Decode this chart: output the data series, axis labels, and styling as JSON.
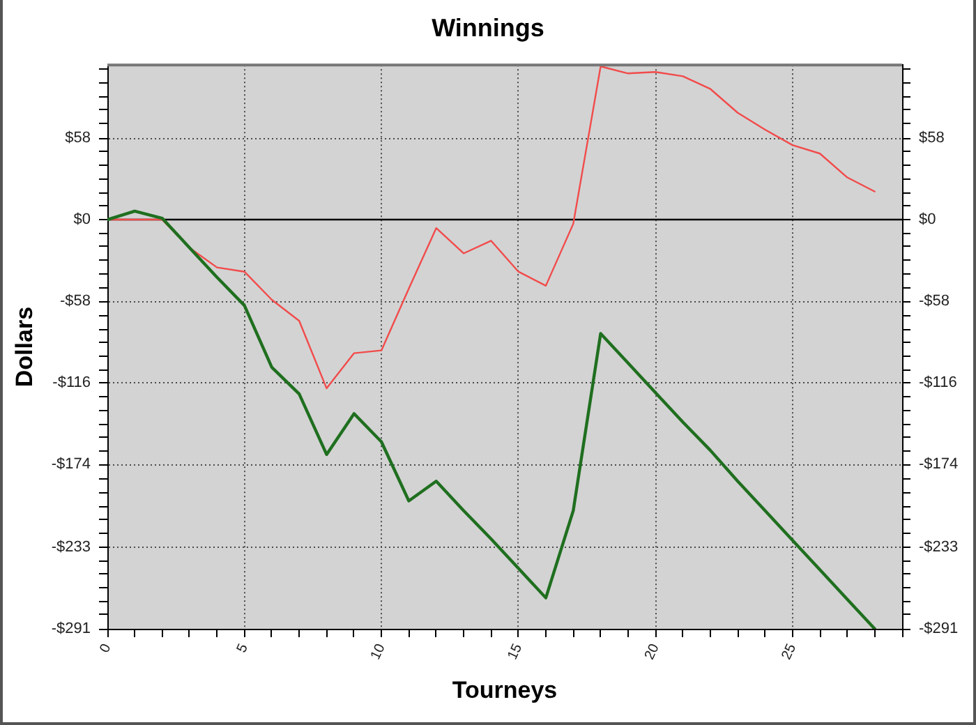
{
  "chart_data": {
    "type": "line",
    "title": "Winnings",
    "xlabel": "Tourneys",
    "ylabel": "Dollars",
    "x": [
      0,
      1,
      2,
      3,
      4,
      5,
      6,
      7,
      8,
      9,
      10,
      11,
      12,
      13,
      14,
      15,
      16,
      17,
      18,
      19,
      20,
      21,
      22,
      23,
      24,
      25,
      26,
      27,
      28
    ],
    "series": [
      {
        "color": "#1f6f1f",
        "values": [
          0,
          6,
          1,
          -20,
          -41,
          -61,
          -105,
          -124,
          -167,
          -138,
          -158,
          -200,
          -186,
          -207,
          -227,
          -248,
          -269,
          -207,
          -81,
          -102,
          -123,
          -144,
          -164,
          -186,
          -207,
          -228,
          -249,
          -270,
          -291
        ]
      },
      {
        "color": "#f24b4b",
        "values": [
          0,
          0,
          0,
          -20,
          -34,
          -37,
          -57,
          -72,
          -120,
          -95,
          -93,
          -49,
          -6,
          -24,
          -15,
          -37,
          -47,
          -3,
          109,
          104,
          105,
          102,
          93,
          76,
          64,
          53,
          47,
          30,
          20
        ]
      }
    ],
    "xlim": [
      0,
      29
    ],
    "xticks": [
      0,
      {
        "value": 1,
        "label": null
      },
      {
        "value": 2,
        "label": null
      },
      {
        "value": 3,
        "label": null
      },
      {
        "value": 4,
        "label": null
      },
      5,
      {
        "value": 6,
        "label": null
      },
      {
        "value": 7,
        "label": null
      },
      {
        "value": 8,
        "label": null
      },
      {
        "value": 9,
        "label": null
      },
      10,
      {
        "value": 11,
        "label": null
      },
      {
        "value": 12,
        "label": null
      },
      {
        "value": 13,
        "label": null
      },
      {
        "value": 14,
        "label": null
      },
      15,
      {
        "value": 16,
        "label": null
      },
      {
        "value": 17,
        "label": null
      },
      {
        "value": 18,
        "label": null
      },
      {
        "value": 19,
        "label": null
      },
      20,
      {
        "value": 21,
        "label": null
      },
      {
        "value": 22,
        "label": null
      },
      {
        "value": 23,
        "label": null
      },
      {
        "value": 24,
        "label": null
      },
      25,
      {
        "value": 26,
        "label": null
      },
      {
        "value": 27,
        "label": null
      },
      {
        "value": 28,
        "label": null
      },
      {
        "value": 29,
        "label": null
      }
    ],
    "ylim": [
      -291,
      110
    ],
    "yticks": [
      {
        "value": 107,
        "label": null
      },
      {
        "value": 97,
        "label": null
      },
      {
        "value": 87,
        "label": null
      },
      {
        "value": 78,
        "label": null
      },
      {
        "value": 68,
        "label": null
      },
      {
        "value": 58,
        "label": "$58"
      },
      {
        "value": 49,
        "label": null
      },
      {
        "value": 39,
        "label": null
      },
      {
        "value": 29,
        "label": null
      },
      {
        "value": 19,
        "label": null
      },
      {
        "value": 10,
        "label": null
      },
      {
        "value": 0,
        "label": "$0"
      },
      {
        "value": -10,
        "label": null
      },
      {
        "value": -19,
        "label": null
      },
      {
        "value": -29,
        "label": null
      },
      {
        "value": -39,
        "label": null
      },
      {
        "value": -49,
        "label": null
      },
      {
        "value": -58,
        "label": "-$58"
      },
      {
        "value": -68,
        "label": null
      },
      {
        "value": -78,
        "label": null
      },
      {
        "value": -87,
        "label": null
      },
      {
        "value": -97,
        "label": null
      },
      {
        "value": -107,
        "label": null
      },
      {
        "value": -116,
        "label": "-$116"
      },
      {
        "value": -126,
        "label": null
      },
      {
        "value": -136,
        "label": null
      },
      {
        "value": -146,
        "label": null
      },
      {
        "value": -155,
        "label": null
      },
      {
        "value": -165,
        "label": null
      },
      {
        "value": -174,
        "label": "-$174"
      },
      {
        "value": -184,
        "label": null
      },
      {
        "value": -194,
        "label": null
      },
      {
        "value": -204,
        "label": null
      },
      {
        "value": -213,
        "label": null
      },
      {
        "value": -223,
        "label": null
      },
      {
        "value": -233,
        "label": "-$233"
      },
      {
        "value": -243,
        "label": null
      },
      {
        "value": -252,
        "label": null
      },
      {
        "value": -262,
        "label": null
      },
      {
        "value": -272,
        "label": null
      },
      {
        "value": -281,
        "label": null
      },
      {
        "value": -291,
        "label": "-$291"
      }
    ],
    "y2lim": [
      -291,
      110
    ],
    "y2ticks": [
      {
        "value": 107,
        "label": null
      },
      {
        "value": 97,
        "label": null
      },
      {
        "value": 87,
        "label": null
      },
      {
        "value": 78,
        "label": null
      },
      {
        "value": 68,
        "label": null
      },
      {
        "value": 58,
        "label": "$58"
      },
      {
        "value": 49,
        "label": null
      },
      {
        "value": 39,
        "label": null
      },
      {
        "value": 29,
        "label": null
      },
      {
        "value": 19,
        "label": null
      },
      {
        "value": 10,
        "label": null
      },
      {
        "value": 0,
        "label": "$0"
      },
      {
        "value": -10,
        "label": null
      },
      {
        "value": -19,
        "label": null
      },
      {
        "value": -29,
        "label": null
      },
      {
        "value": -39,
        "label": null
      },
      {
        "value": -49,
        "label": null
      },
      {
        "value": -58,
        "label": "-$58"
      },
      {
        "value": -68,
        "label": null
      },
      {
        "value": -78,
        "label": null
      },
      {
        "value": -87,
        "label": null
      },
      {
        "value": -97,
        "label": null
      },
      {
        "value": -107,
        "label": null
      },
      {
        "value": -116,
        "label": "-$116"
      },
      {
        "value": -126,
        "label": null
      },
      {
        "value": -136,
        "label": null
      },
      {
        "value": -146,
        "label": null
      },
      {
        "value": -155,
        "label": null
      },
      {
        "value": -165,
        "label": null
      },
      {
        "value": -174,
        "label": "-$174"
      },
      {
        "value": -184,
        "label": null
      },
      {
        "value": -194,
        "label": null
      },
      {
        "value": -204,
        "label": null
      },
      {
        "value": -213,
        "label": null
      },
      {
        "value": -223,
        "label": null
      },
      {
        "value": -233,
        "label": "-$233"
      },
      {
        "value": -243,
        "label": null
      },
      {
        "value": -252,
        "label": null
      },
      {
        "value": -262,
        "label": null
      },
      {
        "value": -272,
        "label": null
      },
      {
        "value": -281,
        "label": null
      },
      {
        "value": -291,
        "label": "-$291"
      }
    ],
    "ref_lines": [
      {
        "axis": "y",
        "value": 0,
        "color": "#000000"
      }
    ],
    "grid": true,
    "marker": "none",
    "line_style": "solid"
  }
}
